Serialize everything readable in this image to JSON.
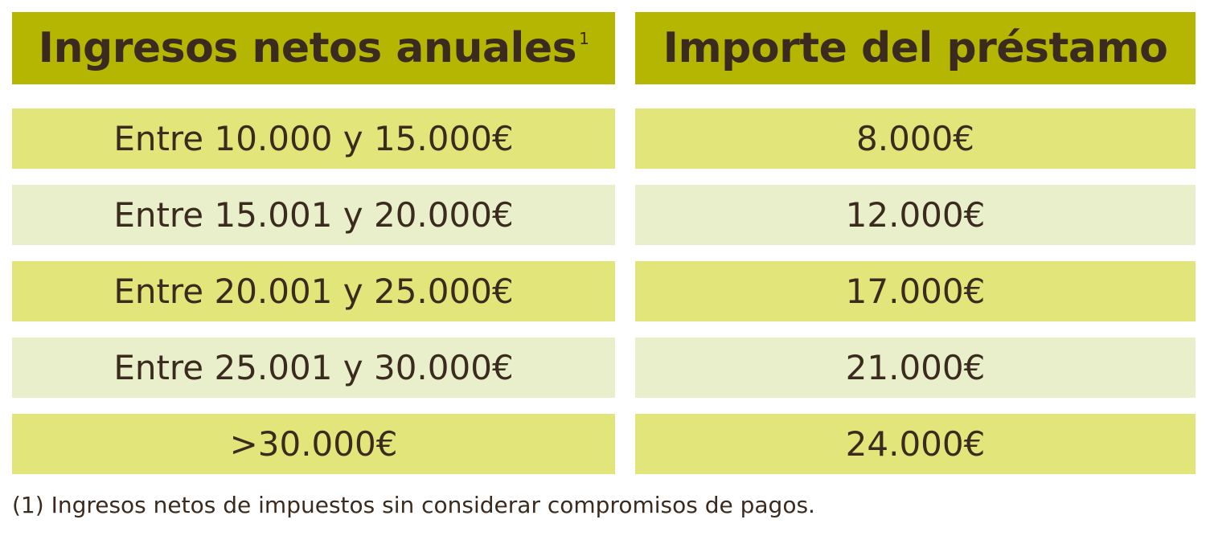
{
  "table": {
    "headers": [
      {
        "text": "Ingresos netos anuales",
        "note": "1"
      },
      {
        "text": "Importe del préstamo"
      }
    ],
    "rows": [
      [
        "Entre 10.000 y 15.000€",
        "8.000€"
      ],
      [
        "Entre 15.001 y 20.000€",
        "12.000€"
      ],
      [
        "Entre 20.001 y 25.000€",
        "17.000€"
      ],
      [
        "Entre 25.001 y 30.000€",
        "21.000€"
      ],
      [
        ">30.000€",
        "24.000€"
      ]
    ]
  },
  "footnote": "(1) Ingresos netos de impuestos sin considerar compromisos de pagos."
}
